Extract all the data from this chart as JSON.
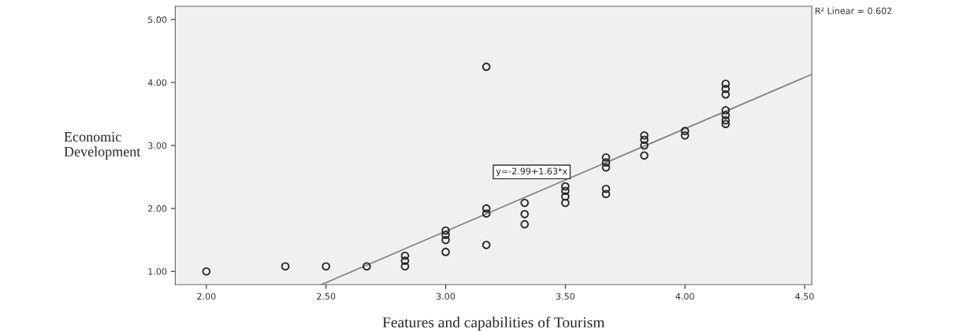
{
  "chart_data": {
    "type": "scatter",
    "xlabel": "Features and capabilities of Tourism",
    "ylabel": "Economic\nDevelopment",
    "series": [
      {
        "color": "#222222",
        "marker": "circle",
        "x": [
          2.0,
          2.33,
          2.5,
          2.67,
          2.83,
          2.83,
          2.83,
          3.0,
          3.0,
          3.0,
          3.0,
          3.17,
          3.17,
          3.17,
          3.17,
          3.33,
          3.33,
          3.33,
          3.5,
          3.5,
          3.5,
          3.5,
          3.67,
          3.67,
          3.67,
          3.67,
          3.67,
          3.83,
          3.83,
          3.83,
          3.83,
          4.0,
          4.0,
          4.17,
          4.17,
          4.17,
          4.17,
          4.17,
          4.17,
          4.17
        ],
        "values": [
          1.0,
          1.08,
          1.08,
          1.08,
          1.25,
          1.17,
          1.08,
          1.65,
          1.58,
          1.5,
          1.31,
          4.25,
          2.0,
          1.92,
          1.42,
          2.09,
          1.91,
          1.75,
          2.35,
          2.28,
          2.19,
          2.09,
          2.81,
          2.73,
          2.65,
          2.31,
          2.23,
          3.16,
          3.09,
          3.0,
          2.84,
          3.23,
          3.16,
          3.98,
          3.9,
          3.81,
          3.56,
          3.48,
          3.4,
          3.34
        ]
      },
      {
        "type": "line",
        "color": "#808080",
        "marker": "none",
        "x": [
          2.48,
          4.53
        ],
        "values": [
          0.79,
          4.13
        ]
      }
    ],
    "xlim": [
      1.87,
      4.53
    ],
    "ylim": [
      0.79,
      5.21
    ],
    "xticks": [
      {
        "value": 2.0,
        "label": "2.00"
      },
      {
        "value": 2.5,
        "label": "2.50"
      },
      {
        "value": 3.0,
        "label": "3.00"
      },
      {
        "value": 3.5,
        "label": "3.50"
      },
      {
        "value": 4.0,
        "label": "4.00"
      },
      {
        "value": 4.5,
        "label": "4.50"
      }
    ],
    "yticks": [
      {
        "value": 1.0,
        "label": "1.00"
      },
      {
        "value": 2.0,
        "label": "2.00"
      },
      {
        "value": 3.0,
        "label": "3.00"
      },
      {
        "value": 4.0,
        "label": "4.00"
      },
      {
        "value": 5.0,
        "label": "5.00"
      }
    ],
    "annotations": [
      "y=-2.99+1.63*x",
      "R² Linear = 0.602"
    ],
    "grid": false,
    "legend": false
  }
}
